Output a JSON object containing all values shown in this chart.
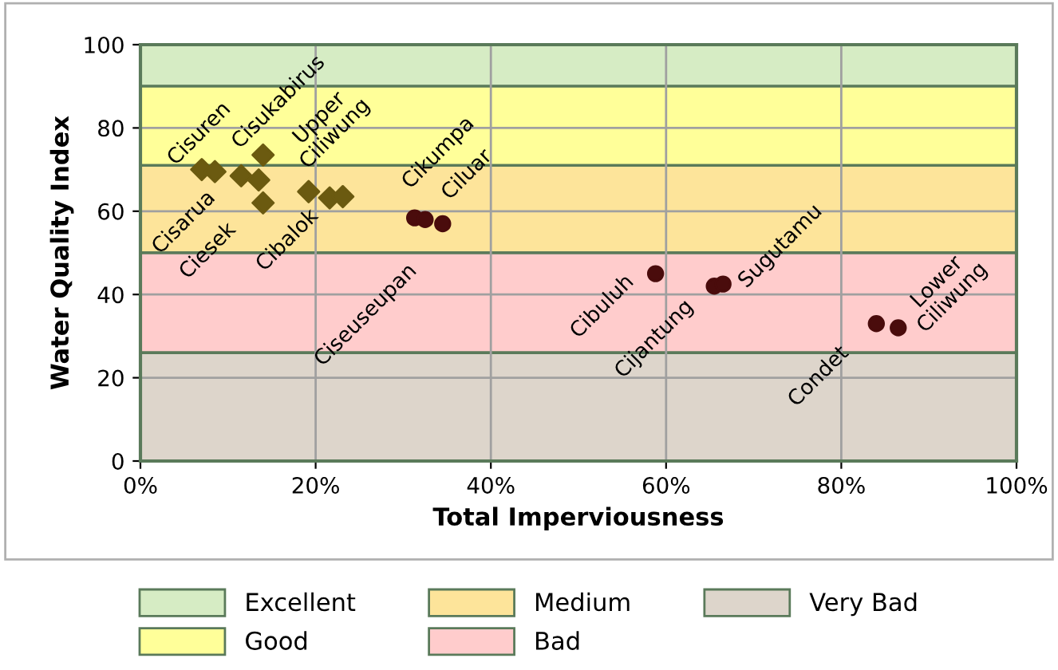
{
  "chart_data": {
    "type": "scatter",
    "xlabel": "Total Imperviousness",
    "ylabel": "Water Quality Index",
    "xlim": [
      0,
      100
    ],
    "ylim": [
      0,
      100
    ],
    "xticks": [
      {
        "value": 0,
        "label": "0%"
      },
      {
        "value": 20,
        "label": "20%"
      },
      {
        "value": 40,
        "label": "40%"
      },
      {
        "value": 60,
        "label": "60%"
      },
      {
        "value": 80,
        "label": "80%"
      },
      {
        "value": 100,
        "label": "100%"
      }
    ],
    "yticks": [
      0,
      20,
      40,
      60,
      80,
      100
    ],
    "grid": true,
    "legend": "bottom",
    "series": [
      {
        "color": "#6b5a10",
        "marker": "diamond",
        "x": [
          7,
          8.5,
          11.5,
          13.5,
          14,
          14,
          19.2,
          21.6,
          23.1
        ],
        "values": [
          70,
          69.5,
          68.5,
          67.5,
          73.5,
          62,
          64.7,
          63.2,
          63.5
        ]
      },
      {
        "color": "#4a0c0c",
        "marker": "circle",
        "x": [
          31.3,
          32.5,
          34.5,
          58.8,
          65.5,
          66.5,
          84,
          86.5
        ],
        "values": [
          58.4,
          58,
          57,
          45,
          42,
          42.5,
          33,
          32
        ]
      }
    ],
    "bands": [
      {
        "axis": "y",
        "from": 90,
        "to": 100,
        "label": "Excellent",
        "color": "#d6ecc4"
      },
      {
        "axis": "y",
        "from": 71,
        "to": 90,
        "label": "Good",
        "color": "#ffff99"
      },
      {
        "axis": "y",
        "from": 50,
        "to": 71,
        "label": "Medium",
        "color": "#fde49a"
      },
      {
        "axis": "y",
        "from": 26,
        "to": 50,
        "label": "Bad",
        "color": "#ffcccc"
      },
      {
        "axis": "y",
        "from": 0,
        "to": 26,
        "label": "Very Bad",
        "color": "#ddd5cb"
      }
    ],
    "annotations": [
      {
        "text": "Cisarua",
        "x": 7,
        "y": 70
      },
      {
        "text": "Cisuren",
        "x": 8.5,
        "y": 69.5
      },
      {
        "text": "Ciesek",
        "x": 11.5,
        "y": 68.5
      },
      {
        "text": "Cisukabirus",
        "x": 13.5,
        "y": 67.5
      },
      {
        "text": "Upper\nCiliwung",
        "x": 14,
        "y": 73.5
      },
      {
        "text": "Cibalok",
        "x": 14,
        "y": 62
      },
      {
        "text": "Ciseuseupan",
        "x": 31.3,
        "y": 58.4
      },
      {
        "text": "Cikumpa",
        "x": 32.5,
        "y": 58
      },
      {
        "text": "Ciluar",
        "x": 34.5,
        "y": 57
      },
      {
        "text": "Cibuluh",
        "x": 58.8,
        "y": 45
      },
      {
        "text": "Cijantung",
        "x": 65.5,
        "y": 42
      },
      {
        "text": "Sugutamu",
        "x": 66.5,
        "y": 42.5
      },
      {
        "text": "Condet",
        "x": 84,
        "y": 33
      },
      {
        "text": "Lower\nCiliwung",
        "x": 86.5,
        "y": 32
      }
    ]
  }
}
